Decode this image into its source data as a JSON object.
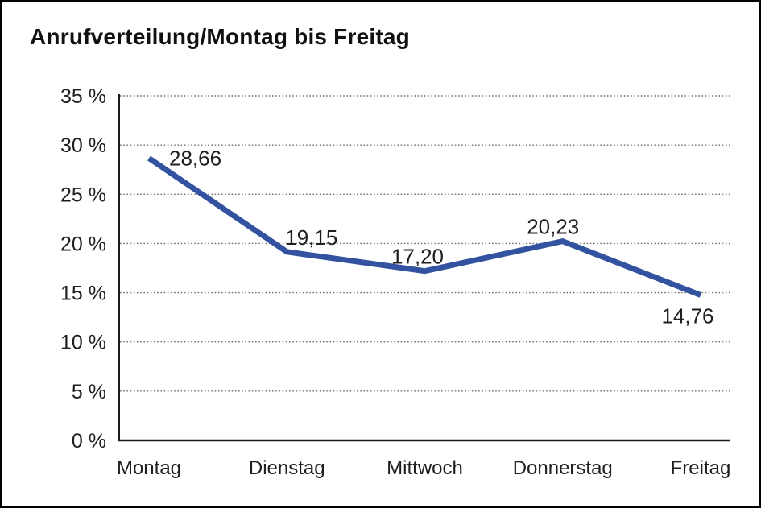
{
  "chart": {
    "title": "Anrufverteilung/Montag bis Freitag"
  },
  "chart_data": {
    "type": "line",
    "title": "Anrufverteilung/Montag bis Freitag",
    "categories": [
      "Montag",
      "Dienstag",
      "Mittwoch",
      "Donnerstag",
      "Freitag"
    ],
    "series": [
      {
        "name": "Anrufverteilung",
        "values": [
          28.66,
          19.15,
          17.2,
          20.23,
          14.76
        ],
        "point_labels": [
          "28,66",
          "19,15",
          "17,20",
          "20,23",
          "14,76"
        ]
      }
    ],
    "xlabel": "",
    "ylabel": "",
    "ylim": [
      0,
      35
    ],
    "y_ticks": [
      {
        "value": 0,
        "label": "0 %"
      },
      {
        "value": 5,
        "label": "5 %"
      },
      {
        "value": 10,
        "label": "10 %"
      },
      {
        "value": 15,
        "label": "15 %"
      },
      {
        "value": 20,
        "label": "20 %"
      },
      {
        "value": 25,
        "label": "25 %"
      },
      {
        "value": 30,
        "label": "30 %"
      },
      {
        "value": 35,
        "label": "35 %"
      }
    ],
    "grid": "horizontal-dotted",
    "legend_position": "none",
    "colors": {
      "line": "#3353A0",
      "gridline": "#6e6e6e",
      "axis": "#1a1a1a",
      "text": "#1f1f1f",
      "background": "#ffffff",
      "border": "#000000"
    }
  }
}
